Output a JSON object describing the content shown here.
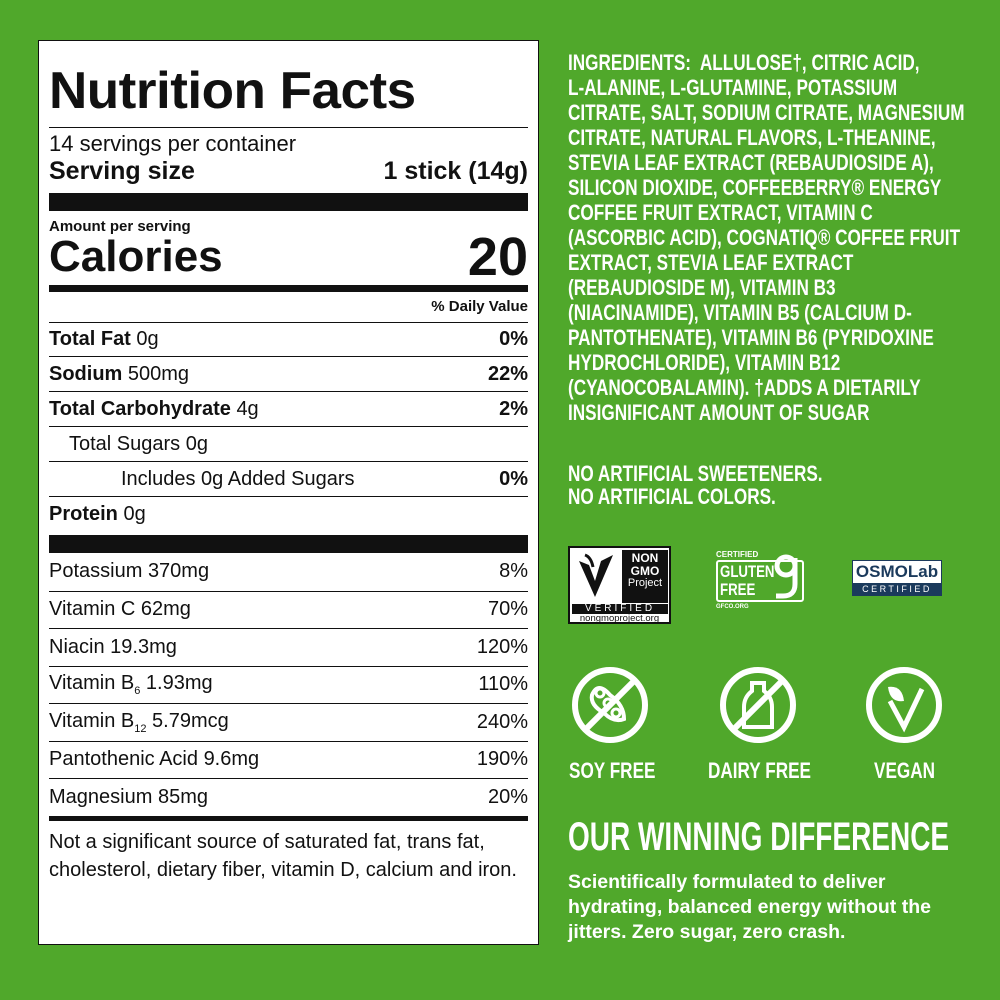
{
  "label": {
    "title": "Nutrition Facts",
    "servings": "14 servings per container",
    "serving_size_label": "Serving size",
    "serving_size_value": "1 stick (14g)",
    "amount_per_serving": "Amount per serving",
    "calories_label": "Calories",
    "calories_value": "20",
    "dv_header": "% Daily Value",
    "nutrients": [
      {
        "name": "Total Fat",
        "amount": "0g",
        "dv": "0%"
      },
      {
        "name": "Sodium",
        "amount": "500mg",
        "dv": "22%"
      },
      {
        "name": "Total Carbohydrate",
        "amount": "4g",
        "dv": "2%"
      },
      {
        "name": "Total Sugars",
        "amount": "0g",
        "dv": ""
      },
      {
        "name": "Includes 0g Added Sugars",
        "amount": "",
        "dv": "0%"
      },
      {
        "name": "Protein",
        "amount": "0g",
        "dv": ""
      }
    ],
    "vitamins": [
      {
        "name": "Potassium",
        "amount": "370mg",
        "dv": "8%"
      },
      {
        "name": "Vitamin C",
        "amount": "62mg",
        "dv": "70%"
      },
      {
        "name": "Niacin",
        "amount": "19.3mg",
        "dv": "120%"
      },
      {
        "name": "Vitamin B",
        "sub": "6",
        "amount": "1.93mg",
        "dv": "110%"
      },
      {
        "name": "Vitamin B",
        "sub": "12",
        "amount": "5.79mcg",
        "dv": "240%"
      },
      {
        "name": "Pantothenic Acid",
        "amount": "9.6mg",
        "dv": "190%"
      },
      {
        "name": "Magnesium",
        "amount": "85mg",
        "dv": "20%"
      }
    ],
    "footnote": "Not a significant source of saturated fat, trans fat, cholesterol, dietary fiber, vitamin D, calcium and iron."
  },
  "ingredients": {
    "heading": "INGREDIENTS:",
    "lines": [
      "ALLULOSE†, CITRIC ACID,",
      "L-ALANINE, L-GLUTAMINE, POTASSIUM",
      "CITRATE, SALT, SODIUM CITRATE, MAGNESIUM",
      "CITRATE, NATURAL FLAVORS, L-THEANINE,",
      "STEVIA LEAF EXTRACT (REBAUDIOSIDE A),",
      "SILICON DIOXIDE, COFFEEBERRY® ENERGY",
      "COFFEE FRUIT EXTRACT, VITAMIN C",
      "(ASCORBIC ACID), COGNATIQ® COFFEE FRUIT",
      "EXTRACT, STEVIA LEAF EXTRACT",
      "(REBAUDIOSIDE M), VITAMIN B3",
      "(NIACINAMIDE), VITAMIN B5 (CALCIUM D-",
      "PANTOTHENATE), VITAMIN B6 (PYRIDOXINE",
      "HYDROCHLORIDE), VITAMIN B12",
      "(CYANOCOBALAMIN). †ADDS A DIETARILY",
      "INSIGNIFICANT AMOUNT OF SUGAR"
    ]
  },
  "claims": [
    "NO ARTIFICIAL SWEETENERS.",
    "NO ARTIFICIAL COLORS."
  ],
  "badges": {
    "nongmo": [
      "NON",
      "GMO",
      "Project",
      "VERIFIED",
      "nongmoproject.org"
    ],
    "gluten": [
      "CERTIFIED",
      "GLUTEN",
      "FREE",
      "GFCO.ORG"
    ],
    "osmo": [
      "OSMO",
      "Lab",
      "CERTIFIED"
    ]
  },
  "icons": [
    {
      "icon": "soy-free-icon",
      "label": "SOY FREE"
    },
    {
      "icon": "dairy-free-icon",
      "label": "DAIRY FREE"
    },
    {
      "icon": "vegan-icon",
      "label": "VEGAN"
    }
  ],
  "difference": {
    "heading": "OUR WINNING DIFFERENCE",
    "text": [
      "Scientifically formulated to deliver",
      "hydrating, balanced energy without the",
      "jitters. Zero sugar, zero crash."
    ]
  },
  "colors": {
    "background": "#50a82b",
    "osmo_navy": "#1b3a5c"
  }
}
